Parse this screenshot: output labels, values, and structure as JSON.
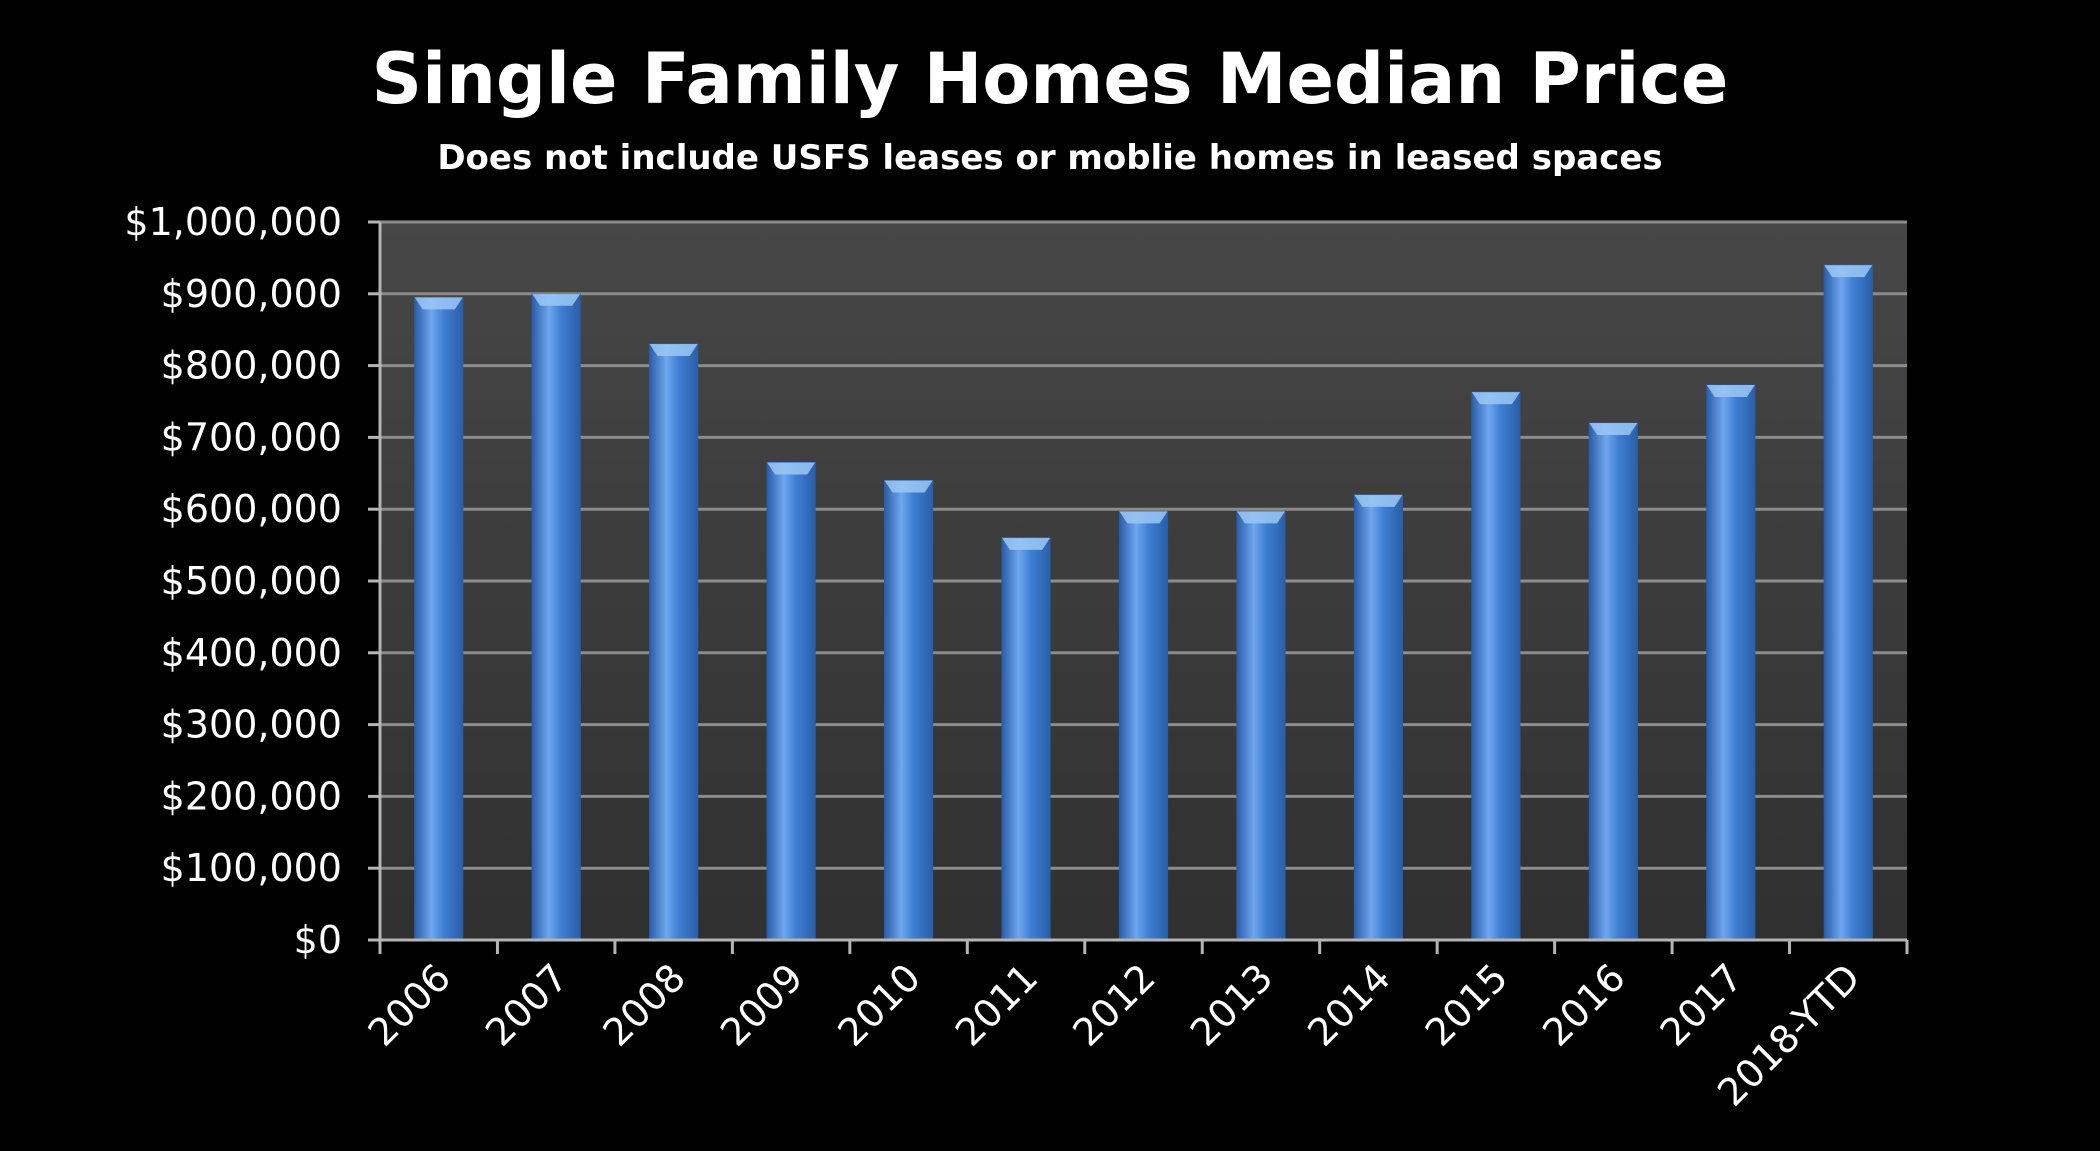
{
  "chart_data": {
    "type": "bar",
    "title": "Single Family Homes Median Price",
    "subtitle": "Does not include USFS leases or moblie homes in leased spaces",
    "xlabel": "",
    "ylabel": "",
    "categories": [
      "2006",
      "2007",
      "2008",
      "2009",
      "2010",
      "2011",
      "2012",
      "2013",
      "2014",
      "2015",
      "2016",
      "2017",
      "2018-YTD"
    ],
    "values": [
      895000,
      900000,
      830000,
      665000,
      640000,
      560000,
      597000,
      597000,
      620000,
      763000,
      720000,
      773000,
      940000
    ],
    "ylim": [
      0,
      1000000
    ],
    "yticks": [
      0,
      100000,
      200000,
      300000,
      400000,
      500000,
      600000,
      700000,
      800000,
      900000,
      1000000
    ],
    "ytick_labels": [
      "$0",
      "$100,000",
      "$200,000",
      "$300,000",
      "$400,000",
      "$500,000",
      "$600,000",
      "$700,000",
      "$800,000",
      "$900,000",
      "$1,000,000"
    ],
    "grid": true,
    "legend": "none",
    "colors": {
      "background": "#000000",
      "plot_area": "#3a3a3a",
      "gridline": "#8c8c8c",
      "axis": "#b4b4b4",
      "bar_main": "#3f7fd4",
      "bar_light": "#6fa6ee",
      "bar_dark": "#2a5ea8",
      "bar_top": "#9cc8f5",
      "text": "#ffffff"
    }
  }
}
